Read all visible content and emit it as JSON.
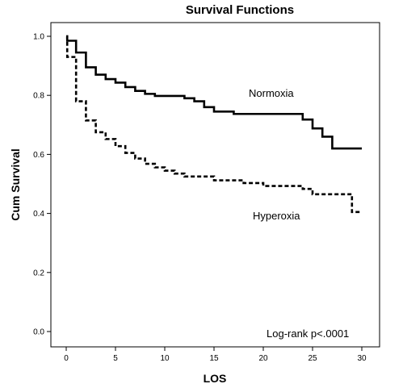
{
  "chart_data": {
    "type": "line",
    "title": "Survival Functions",
    "xlabel": "LOS",
    "ylabel": "Cum Survival",
    "xlim": [
      0,
      30
    ],
    "ylim": [
      0,
      1.0
    ],
    "xticks": [
      0,
      5,
      10,
      15,
      20,
      25,
      30
    ],
    "yticks": [
      0.0,
      0.2,
      0.4,
      0.6,
      0.8,
      1.0
    ],
    "ytick_labels": [
      "0.0",
      "0.2",
      "0.4",
      "0.6",
      "0.8",
      "1.0"
    ],
    "grid": false,
    "step": true,
    "series": [
      {
        "name": "Normoxia",
        "style": "solid",
        "x": [
          0,
          0.1,
          1,
          2,
          3,
          4,
          5,
          6,
          7,
          8,
          9,
          12,
          13,
          14,
          15,
          17,
          24,
          25,
          26,
          27,
          30
        ],
        "y": [
          1.0,
          0.985,
          0.945,
          0.895,
          0.87,
          0.855,
          0.843,
          0.828,
          0.815,
          0.805,
          0.798,
          0.79,
          0.78,
          0.76,
          0.745,
          0.737,
          0.718,
          0.688,
          0.66,
          0.62,
          0.62
        ]
      },
      {
        "name": "Hyperoxia",
        "style": "dashed",
        "x": [
          0,
          0.1,
          1,
          2,
          3,
          4,
          5,
          6,
          7,
          8,
          9,
          10,
          11,
          12,
          15,
          18,
          20,
          24,
          25,
          29,
          30
        ],
        "y": [
          1.0,
          0.93,
          0.78,
          0.715,
          0.675,
          0.652,
          0.628,
          0.605,
          0.586,
          0.568,
          0.556,
          0.545,
          0.535,
          0.525,
          0.512,
          0.503,
          0.493,
          0.483,
          0.465,
          0.405,
          0.405
        ]
      }
    ],
    "annotations": [
      {
        "text": "Log-rank p<.0001"
      }
    ]
  }
}
